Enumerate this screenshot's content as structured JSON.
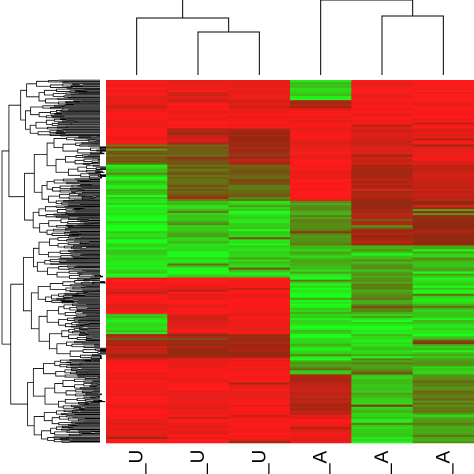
{
  "chart_data": {
    "type": "heatmap",
    "title": "",
    "xlabel": "",
    "ylabel": "",
    "columns": [
      "_U",
      "_U",
      "_U",
      "_A",
      "_A",
      "_A"
    ],
    "colors": {
      "high": "#ff1a1a",
      "mid": "#8b2a10",
      "low": "#1aff1a",
      "dendrogram": "#000000"
    },
    "column_dendrogram": {
      "merges": [
        {
          "left": 1,
          "right": 2
        },
        {
          "left": 0,
          "right": "m0"
        },
        {
          "left": 4,
          "right": 5
        },
        {
          "left": 3,
          "right": "m2"
        },
        {
          "left": "m1",
          "right": "m3"
        }
      ]
    },
    "row_blocks": [
      {
        "rows": 10,
        "values": [
          0.85,
          0.75,
          0.8,
          -0.8,
          0.9,
          0.95
        ]
      },
      {
        "rows": 4,
        "values": [
          0.8,
          0.85,
          0.7,
          0.3,
          0.9,
          0.9
        ]
      },
      {
        "rows": 10,
        "values": [
          0.9,
          0.9,
          0.9,
          0.85,
          0.9,
          0.95
        ]
      },
      {
        "rows": 8,
        "values": [
          0.9,
          0.4,
          0.2,
          0.85,
          0.6,
          0.8
        ]
      },
      {
        "rows": 10,
        "values": [
          -0.3,
          -0.2,
          0.2,
          0.9,
          0.6,
          0.8
        ]
      },
      {
        "rows": 18,
        "values": [
          -0.8,
          -0.3,
          -0.3,
          0.9,
          0.3,
          0.5
        ]
      },
      {
        "rows": 22,
        "values": [
          -0.9,
          -0.7,
          -0.8,
          -0.5,
          0.2,
          0.1
        ]
      },
      {
        "rows": 16,
        "values": [
          -0.85,
          -0.85,
          -0.8,
          -0.7,
          -0.6,
          -0.7
        ]
      },
      {
        "rows": 18,
        "values": [
          0.9,
          0.9,
          0.9,
          -0.9,
          -0.5,
          -0.8
        ]
      },
      {
        "rows": 10,
        "values": [
          -0.8,
          0.7,
          0.8,
          -0.9,
          -0.9,
          -0.8
        ]
      },
      {
        "rows": 12,
        "values": [
          0.3,
          0.2,
          0.2,
          -0.9,
          -0.8,
          -0.7
        ]
      },
      {
        "rows": 8,
        "values": [
          0.9,
          0.9,
          0.9,
          -0.6,
          -0.5,
          -0.6
        ]
      },
      {
        "rows": 20,
        "values": [
          0.9,
          0.9,
          0.9,
          0.4,
          -0.7,
          -0.4
        ]
      },
      {
        "rows": 14,
        "values": [
          0.85,
          0.9,
          0.9,
          0.8,
          -0.8,
          -0.5
        ]
      }
    ]
  }
}
